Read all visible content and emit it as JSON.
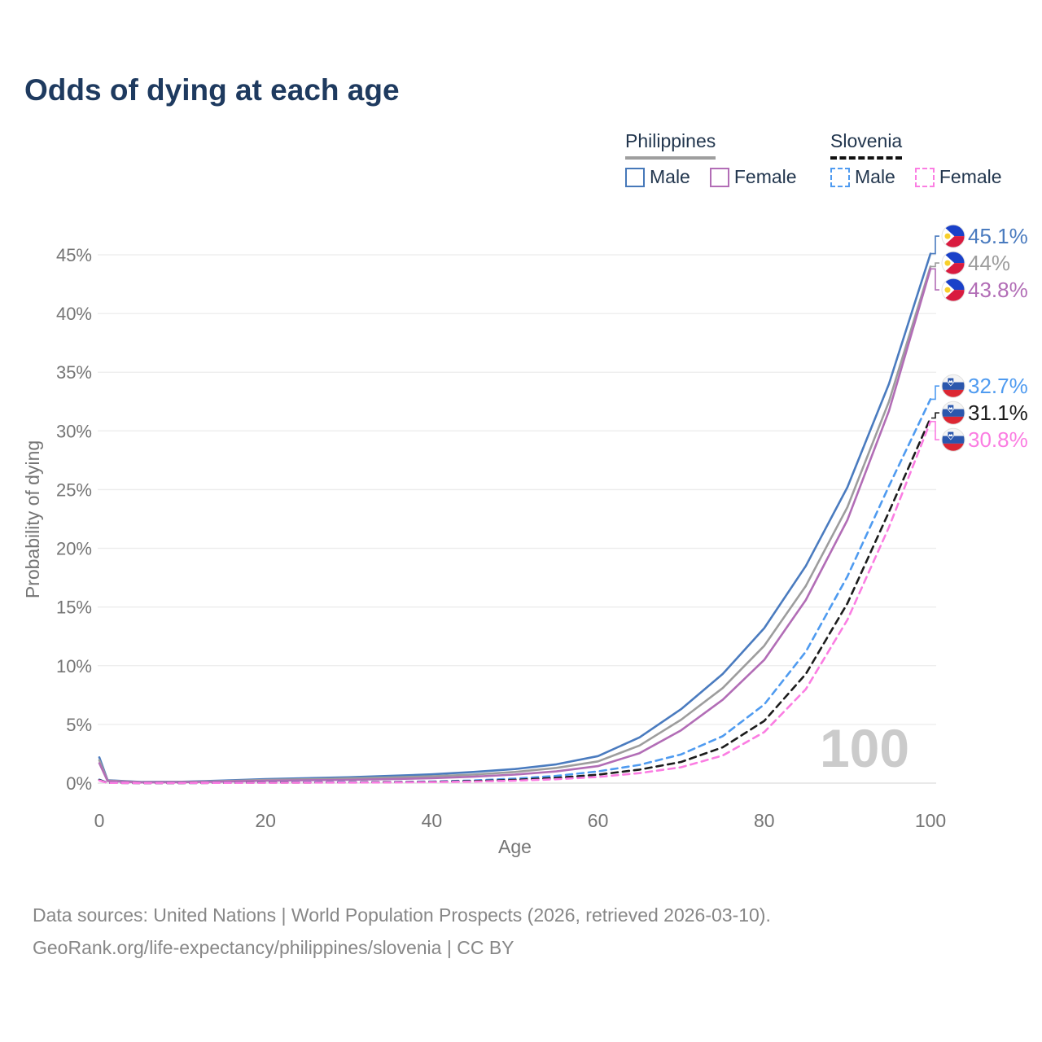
{
  "title": "Odds of dying at each age",
  "legend": {
    "groups": [
      {
        "country": "Philippines",
        "line_style": "solid",
        "underline_color": "#9e9e9e",
        "items": [
          {
            "label": "Male",
            "color": "#4678b9",
            "dashed": false
          },
          {
            "label": "Female",
            "color": "#b26db6",
            "dashed": false
          }
        ]
      },
      {
        "country": "Slovenia",
        "line_style": "dashed",
        "underline_color": "#111111",
        "items": [
          {
            "label": "Male",
            "color": "#4f9bf0",
            "dashed": true
          },
          {
            "label": "Female",
            "color": "#fb7de2",
            "dashed": true
          }
        ]
      }
    ]
  },
  "chart_data": {
    "type": "line",
    "title": "Odds of dying at each age",
    "xlabel": "Age",
    "ylabel": "Probability of dying",
    "x_ticks": [
      0,
      20,
      40,
      60,
      80,
      100
    ],
    "y_ticks_pct": [
      0,
      5,
      10,
      15,
      20,
      25,
      30,
      35,
      40,
      45
    ],
    "xlim": [
      0,
      100
    ],
    "ylim_pct": [
      0,
      45
    ],
    "grid": "horizontal",
    "legend_position": "top-right",
    "watermark": "100",
    "ages": [
      0,
      1,
      5,
      10,
      15,
      20,
      25,
      30,
      35,
      40,
      45,
      50,
      55,
      60,
      65,
      70,
      75,
      80,
      85,
      90,
      95,
      100
    ],
    "series": [
      {
        "name": "Philippines Male",
        "country": "Philippines",
        "sex": "Male",
        "flag": "philippines",
        "color": "#4a7bbf",
        "dashed": false,
        "end_label": "45.1%",
        "values_pct": [
          2.2,
          0.25,
          0.1,
          0.12,
          0.22,
          0.35,
          0.42,
          0.5,
          0.62,
          0.75,
          0.95,
          1.2,
          1.6,
          2.3,
          3.9,
          6.3,
          9.3,
          13.2,
          18.5,
          25.2,
          34.0,
          45.1
        ]
      },
      {
        "name": "Philippines Both sexes",
        "country": "Philippines",
        "sex": "Both",
        "flag": "philippines",
        "color": "#9d9d9d",
        "dashed": false,
        "end_label": "44%",
        "values_pct": [
          1.95,
          0.22,
          0.08,
          0.1,
          0.18,
          0.28,
          0.33,
          0.4,
          0.48,
          0.58,
          0.73,
          0.95,
          1.3,
          1.85,
          3.2,
          5.4,
          8.1,
          11.7,
          16.8,
          23.5,
          32.5,
          44.0
        ]
      },
      {
        "name": "Philippines Female",
        "country": "Philippines",
        "sex": "Female",
        "flag": "philippines",
        "color": "#b26db6",
        "dashed": false,
        "end_label": "43.8%",
        "values_pct": [
          1.7,
          0.18,
          0.06,
          0.08,
          0.13,
          0.2,
          0.24,
          0.28,
          0.34,
          0.42,
          0.55,
          0.73,
          1.0,
          1.45,
          2.55,
          4.5,
          7.1,
          10.5,
          15.6,
          22.4,
          31.7,
          43.8
        ]
      },
      {
        "name": "Slovenia Male",
        "country": "Slovenia",
        "sex": "Male",
        "flag": "slovenia",
        "color": "#4f9bf0",
        "dashed": true,
        "end_label": "32.7%",
        "values_pct": [
          0.3,
          0.03,
          0.01,
          0.01,
          0.03,
          0.06,
          0.07,
          0.08,
          0.1,
          0.14,
          0.22,
          0.38,
          0.62,
          1.0,
          1.55,
          2.45,
          4.0,
          6.7,
          11.2,
          17.6,
          25.3,
          32.7
        ]
      },
      {
        "name": "Slovenia Both sexes",
        "country": "Slovenia",
        "sex": "Both",
        "flag": "slovenia",
        "color": "#1c1c1c",
        "dashed": true,
        "end_label": "31.1%",
        "values_pct": [
          0.27,
          0.02,
          0.01,
          0.01,
          0.02,
          0.05,
          0.05,
          0.06,
          0.08,
          0.11,
          0.17,
          0.28,
          0.45,
          0.72,
          1.15,
          1.8,
          3.05,
          5.3,
          9.3,
          15.3,
          23.1,
          31.1
        ]
      },
      {
        "name": "Slovenia Female",
        "country": "Slovenia",
        "sex": "Female",
        "flag": "slovenia",
        "color": "#fb7de2",
        "dashed": true,
        "end_label": "30.8%",
        "values_pct": [
          0.23,
          0.02,
          0.01,
          0.01,
          0.02,
          0.03,
          0.04,
          0.05,
          0.06,
          0.09,
          0.13,
          0.21,
          0.33,
          0.53,
          0.85,
          1.35,
          2.35,
          4.35,
          8.0,
          13.9,
          21.8,
          30.8
        ]
      }
    ]
  },
  "footer": {
    "line1": "Data sources: United Nations | World Population Prospects (2026, retrieved 2026-03-10).",
    "line2": "GeoRank.org/life-expectancy/philippines/slovenia | CC BY"
  },
  "colors": {
    "title_text": "#1e3a5f",
    "legend_text": "#22364e",
    "axis_text": "#757575",
    "grid_line": "#ececec",
    "zero_line": "#dcdcdc",
    "watermark": "#cbcbcb",
    "footer_text": "#878787",
    "flag_philippines_blue": "#1a41c9",
    "flag_philippines_red": "#d91b3f",
    "flag_philippines_yellow": "#f8cf2c",
    "flag_slovenia_white": "#f4f4f4",
    "flag_slovenia_blue": "#2b57ad",
    "flag_slovenia_red": "#dc2632"
  }
}
